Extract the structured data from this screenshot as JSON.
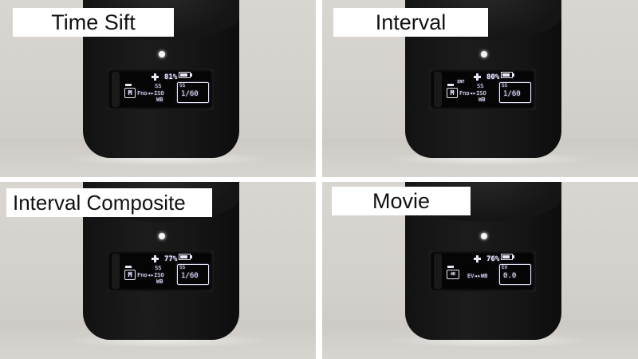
{
  "panels": [
    {
      "title": "Time Sift",
      "mode_icon": "M",
      "mode_tag": "",
      "battery": "81%",
      "battery_level": 0.81,
      "exposure_top": "SS",
      "exposure_mid": "Fno◂▸ISO",
      "exposure_bottom": "WB",
      "value_label": "SS",
      "value": "1/60"
    },
    {
      "title": "Interval",
      "mode_icon": "M",
      "mode_tag": "INT",
      "battery": "80%",
      "battery_level": 0.8,
      "exposure_top": "SS",
      "exposure_mid": "Fno◂▸ISO",
      "exposure_bottom": "WB",
      "value_label": "SS",
      "value": "1/60"
    },
    {
      "title": "Interval Composite",
      "mode_icon": "M",
      "mode_tag": "",
      "battery": "77%",
      "battery_level": 0.77,
      "exposure_top": "SS",
      "exposure_mid": "Fno◂▸ISO",
      "exposure_bottom": "WB",
      "value_label": "SS",
      "value": "1/60"
    },
    {
      "title": "Movie",
      "mode_icon": "4K",
      "mode_tag": "",
      "battery": "76%",
      "battery_level": 0.76,
      "movie_row": "EV◂▸WB",
      "value_label": "EV",
      "value": "0.0"
    }
  ],
  "colors": {
    "osd_text": "#e8e8f6",
    "title_bg": "#ffffff",
    "device_body": "#161616"
  },
  "icons": {
    "plus": "plus-icon",
    "battery": "battery-icon",
    "led": "status-led-icon"
  }
}
